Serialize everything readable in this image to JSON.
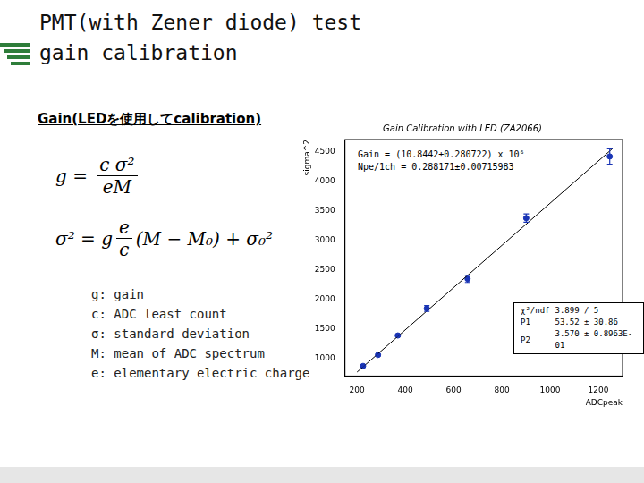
{
  "slide": {
    "title_lines": [
      "PMT(with Zener diode) test",
      "gain calibration"
    ],
    "heading": "Gain(LEDを使用してcalibration)",
    "formula_1": {
      "lhs": "g",
      "numerator": "c σ²",
      "denominator": "eM"
    },
    "formula_2": {
      "lhs": "σ²",
      "factor": "g",
      "numerator": "e",
      "denominator": "c",
      "rest": "(M − M₀) + σ₀²"
    },
    "definitions": [
      "g: gain",
      "c: ADC least count",
      "σ: standard deviation",
      "M: mean of ADC spectrum",
      "e: elementary electric charge"
    ]
  },
  "chart_data": {
    "type": "scatter",
    "title": "Gain Calibration with LED (ZA2066)",
    "x_label": "ADCpeak",
    "y_label": "sigma^2",
    "x": [
      225,
      287,
      369,
      489,
      658,
      901,
      1247
    ],
    "values": [
      870,
      1057,
      1386,
      1843,
      2343,
      3371,
      4414
    ],
    "y_err": [
      15,
      15,
      15,
      50,
      60,
      70,
      130
    ],
    "color": "#1a35b5",
    "marker": "circle",
    "fit": {
      "x": [
        200,
        1260
      ],
      "values": [
        767,
        4552
      ],
      "color": "#000000",
      "line_style": "solid"
    },
    "annotations": [
      "Gain = (10.8442±0.280722) x 10⁶",
      "Npe/1ch = 0.288171±0.00715983"
    ],
    "stats": [
      [
        "χ²/ndf",
        "3.899 / 5"
      ],
      [
        "P1",
        "53.52 ± 30.86"
      ],
      [
        "P2",
        "3.570 ± 0.8963E-01"
      ]
    ],
    "xlim": [
      150,
      1300
    ],
    "xticks": [
      200,
      400,
      600,
      800,
      1000,
      1200
    ],
    "ylim": [
      700,
      4700
    ],
    "yticks": [
      1000,
      1500,
      2000,
      2500,
      3000,
      3500,
      4000,
      4500
    ],
    "grid": false
  }
}
